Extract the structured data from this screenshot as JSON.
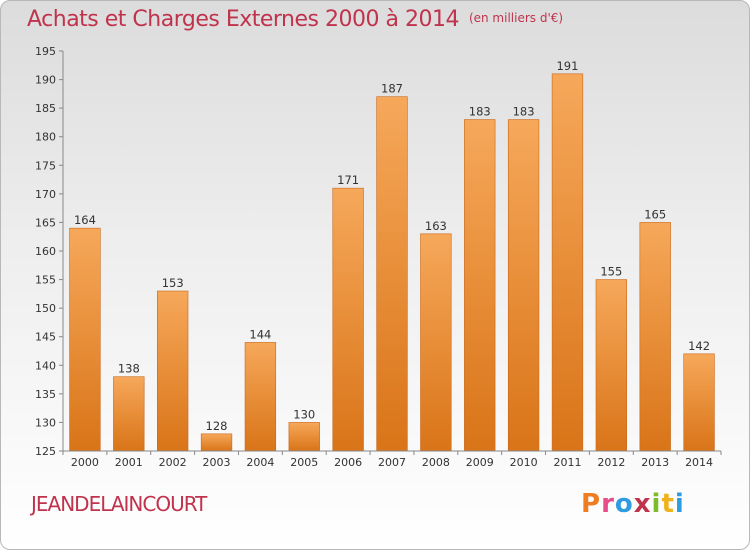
{
  "title": "Achats et Charges Externes 2000 à 2014",
  "title_unit": "(en milliers d'€)",
  "commune": "JEANDELAINCOURT",
  "brand": {
    "letters": [
      "P",
      "r",
      "o",
      "x",
      "i",
      "t",
      "i"
    ],
    "colors": [
      "#ef7d22",
      "#e84c8b",
      "#2f9be0",
      "#c0334d",
      "#7dbb2b",
      "#f0b21a",
      "#2f9be0"
    ]
  },
  "colors": {
    "bar_top": "#f6a85a",
    "bar_bottom": "#d97418",
    "accent": "#c0334d"
  },
  "chart_data": {
    "type": "bar",
    "title": "Achats et Charges Externes 2000 à 2014",
    "categories": [
      "2000",
      "2001",
      "2002",
      "2003",
      "2004",
      "2005",
      "2006",
      "2007",
      "2008",
      "2009",
      "2010",
      "2011",
      "2012",
      "2013",
      "2014"
    ],
    "values": [
      164,
      138,
      153,
      128,
      144,
      130,
      171,
      187,
      163,
      183,
      183,
      191,
      155,
      165,
      142
    ],
    "ylim": [
      125,
      195
    ],
    "yticks": [
      125,
      130,
      135,
      140,
      145,
      150,
      155,
      160,
      165,
      170,
      175,
      180,
      185,
      190,
      195
    ],
    "grid": false,
    "data_labels": true
  }
}
